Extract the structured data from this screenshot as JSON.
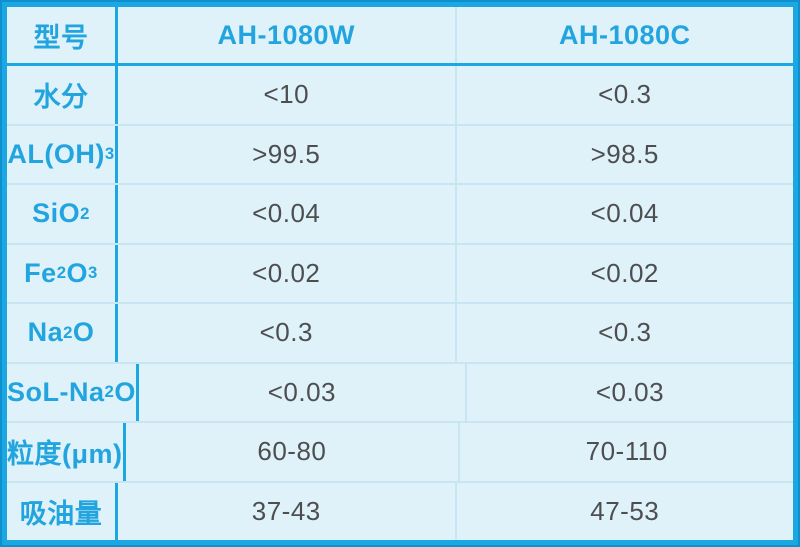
{
  "table": {
    "header": {
      "model_label": "型号",
      "columns": [
        "AH-1080W",
        "AH-1080C"
      ]
    },
    "rows": [
      {
        "name": "row-moisture",
        "label": [
          {
            "text": "水分"
          }
        ],
        "values": [
          "<10",
          "<0.3"
        ]
      },
      {
        "name": "row-aloh3",
        "label": [
          {
            "text": "AL(OH)"
          },
          {
            "text": "3",
            "sub": true
          }
        ],
        "values": [
          ">99.5",
          ">98.5"
        ]
      },
      {
        "name": "row-sio2",
        "label": [
          {
            "text": "SiO"
          },
          {
            "text": "2",
            "sub": true
          }
        ],
        "values": [
          "<0.04",
          "<0.04"
        ]
      },
      {
        "name": "row-fe2o3",
        "label": [
          {
            "text": "Fe"
          },
          {
            "text": "2",
            "sub": true
          },
          {
            "text": "O"
          },
          {
            "text": "3",
            "sub": true
          }
        ],
        "values": [
          "<0.02",
          "<0.02"
        ]
      },
      {
        "name": "row-na2o",
        "label": [
          {
            "text": "Na"
          },
          {
            "text": "2",
            "sub": true
          },
          {
            "text": "O"
          }
        ],
        "values": [
          "<0.3",
          "<0.3"
        ]
      },
      {
        "name": "row-sol-na2o",
        "label": [
          {
            "text": "SoL-Na"
          },
          {
            "text": "2",
            "sub": true
          },
          {
            "text": "O"
          }
        ],
        "values": [
          "<0.03",
          "<0.03"
        ]
      },
      {
        "name": "row-particle-size",
        "label": [
          {
            "text": "粒度(μm)"
          }
        ],
        "values": [
          "60-80",
          "70-110"
        ]
      },
      {
        "name": "row-oil-absorption",
        "label": [
          {
            "text": "吸油量"
          }
        ],
        "values": [
          "37-43",
          "47-53"
        ]
      }
    ],
    "colors": {
      "frame_outer": "#0e8fce",
      "frame_inner": "#1ba7e1",
      "cell_background": "#dff1f9",
      "grid_pale": "#c9e5f2",
      "label_text": "#22a5df",
      "value_text": "#4d4e50"
    }
  },
  "chart_data": {
    "type": "table",
    "title": "",
    "columns": [
      "型号",
      "AH-1080W",
      "AH-1080C"
    ],
    "rows": [
      [
        "水分",
        "<10",
        "<0.3"
      ],
      [
        "AL(OH)3",
        ">99.5",
        ">98.5"
      ],
      [
        "SiO2",
        "<0.04",
        "<0.04"
      ],
      [
        "Fe2O3",
        "<0.02",
        "<0.02"
      ],
      [
        "Na2O",
        "<0.3",
        "<0.3"
      ],
      [
        "SoL-Na2O",
        "<0.03",
        "<0.03"
      ],
      [
        "粒度(μm)",
        "60-80",
        "70-110"
      ],
      [
        "吸油量",
        "37-43",
        "47-53"
      ]
    ]
  }
}
